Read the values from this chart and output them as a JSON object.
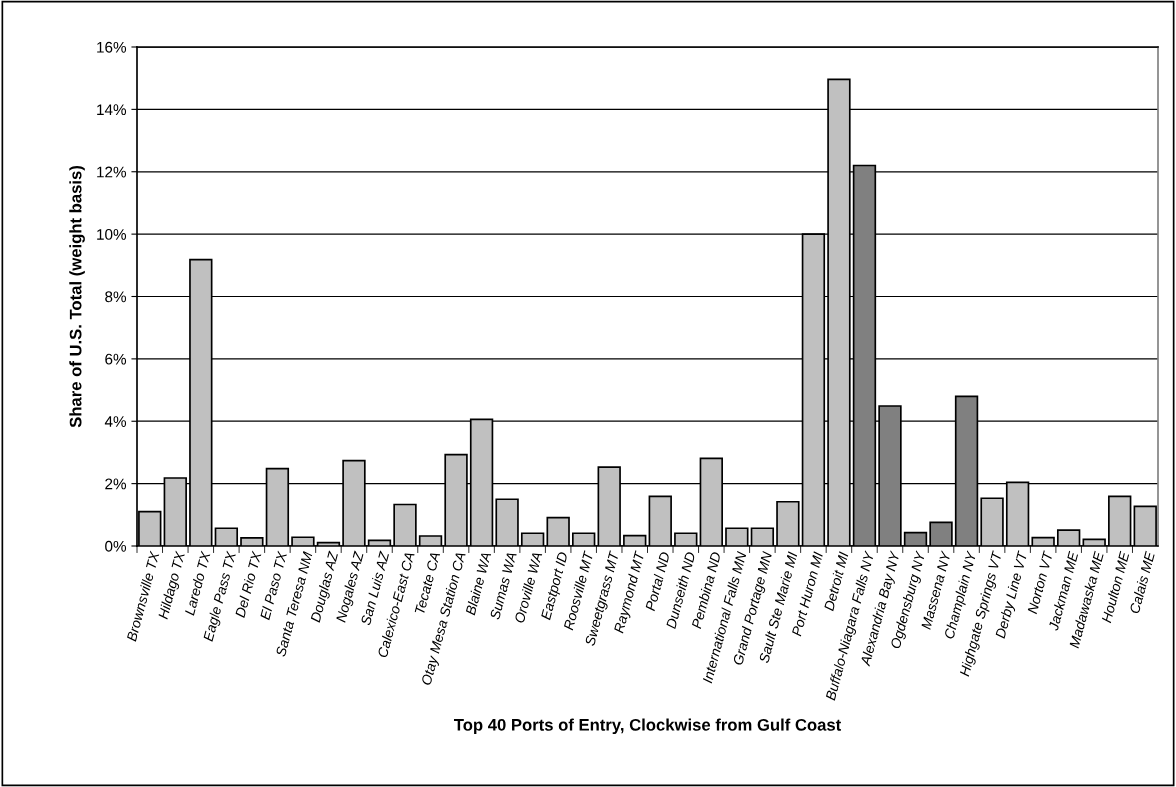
{
  "chart_data": {
    "type": "bar",
    "xlabel": "Top 40 Ports of Entry, Clockwise from Gulf Coast",
    "ylabel": "Share of U.S. Total (weight basis)",
    "categories": [
      "Brownsville TX",
      "Hildago TX",
      "Laredo TX",
      "Eagle Pass TX",
      "Del Rio TX",
      "El Paso TX",
      "Santa Teresa NM",
      "Douglas AZ",
      "Nogales AZ",
      "San Luis AZ",
      "Calexico-East CA",
      "Tecate CA",
      "Otay Mesa Station CA",
      "Blaine WA",
      "Sumas WA",
      "Oroville WA",
      "Eastport ID",
      "Roosville MT",
      "Sweetgrass MT",
      "Raymond MT",
      "Portal ND",
      "Dunseith ND",
      "Pembina ND",
      "International Falls MN",
      "Grand Portage MN",
      "Sault Ste Marie MI",
      "Port Huron MI",
      "Detroit MI",
      "Buffalo-Niagara Falls NY",
      "Alexandria Bay NY",
      "Ogdensburg NY",
      "Massena NY",
      "Champlain NY",
      "Highgate Springs VT",
      "Derby Line VT",
      "Norton VT",
      "Jackman ME",
      "Madawaska ME",
      "Houlton ME",
      "Calais ME"
    ],
    "values": [
      1.1,
      2.18,
      9.18,
      0.57,
      0.26,
      2.48,
      0.28,
      0.11,
      2.74,
      0.18,
      1.33,
      0.32,
      2.93,
      4.06,
      1.5,
      0.41,
      0.91,
      0.41,
      2.53,
      0.33,
      1.59,
      0.41,
      2.81,
      0.57,
      0.57,
      1.42,
      10.0,
      14.96,
      12.2,
      4.49,
      0.43,
      0.76,
      4.8,
      1.53,
      2.04,
      0.27,
      0.51,
      0.21,
      1.59,
      1.27
    ],
    "colors": [
      "#c0c0c0",
      "#c0c0c0",
      "#c0c0c0",
      "#c0c0c0",
      "#c0c0c0",
      "#c0c0c0",
      "#c0c0c0",
      "#c0c0c0",
      "#c0c0c0",
      "#c0c0c0",
      "#c0c0c0",
      "#c0c0c0",
      "#c0c0c0",
      "#c0c0c0",
      "#c0c0c0",
      "#c0c0c0",
      "#c0c0c0",
      "#c0c0c0",
      "#c0c0c0",
      "#c0c0c0",
      "#c0c0c0",
      "#c0c0c0",
      "#c0c0c0",
      "#c0c0c0",
      "#c0c0c0",
      "#c0c0c0",
      "#c0c0c0",
      "#c0c0c0",
      "#808080",
      "#808080",
      "#808080",
      "#808080",
      "#808080",
      "#c0c0c0",
      "#c0c0c0",
      "#c0c0c0",
      "#c0c0c0",
      "#c0c0c0",
      "#c0c0c0",
      "#c0c0c0"
    ],
    "ylim": [
      0,
      16
    ],
    "yticks": [
      {
        "value": 0,
        "label": "0%"
      },
      {
        "value": 2,
        "label": "2%"
      },
      {
        "value": 4,
        "label": "4%"
      },
      {
        "value": 6,
        "label": "6%"
      },
      {
        "value": 8,
        "label": "8%"
      },
      {
        "value": 10,
        "label": "10%"
      },
      {
        "value": 12,
        "label": "12%"
      },
      {
        "value": 14,
        "label": "14%"
      },
      {
        "value": 16,
        "label": "16%"
      }
    ],
    "grid": "y"
  }
}
